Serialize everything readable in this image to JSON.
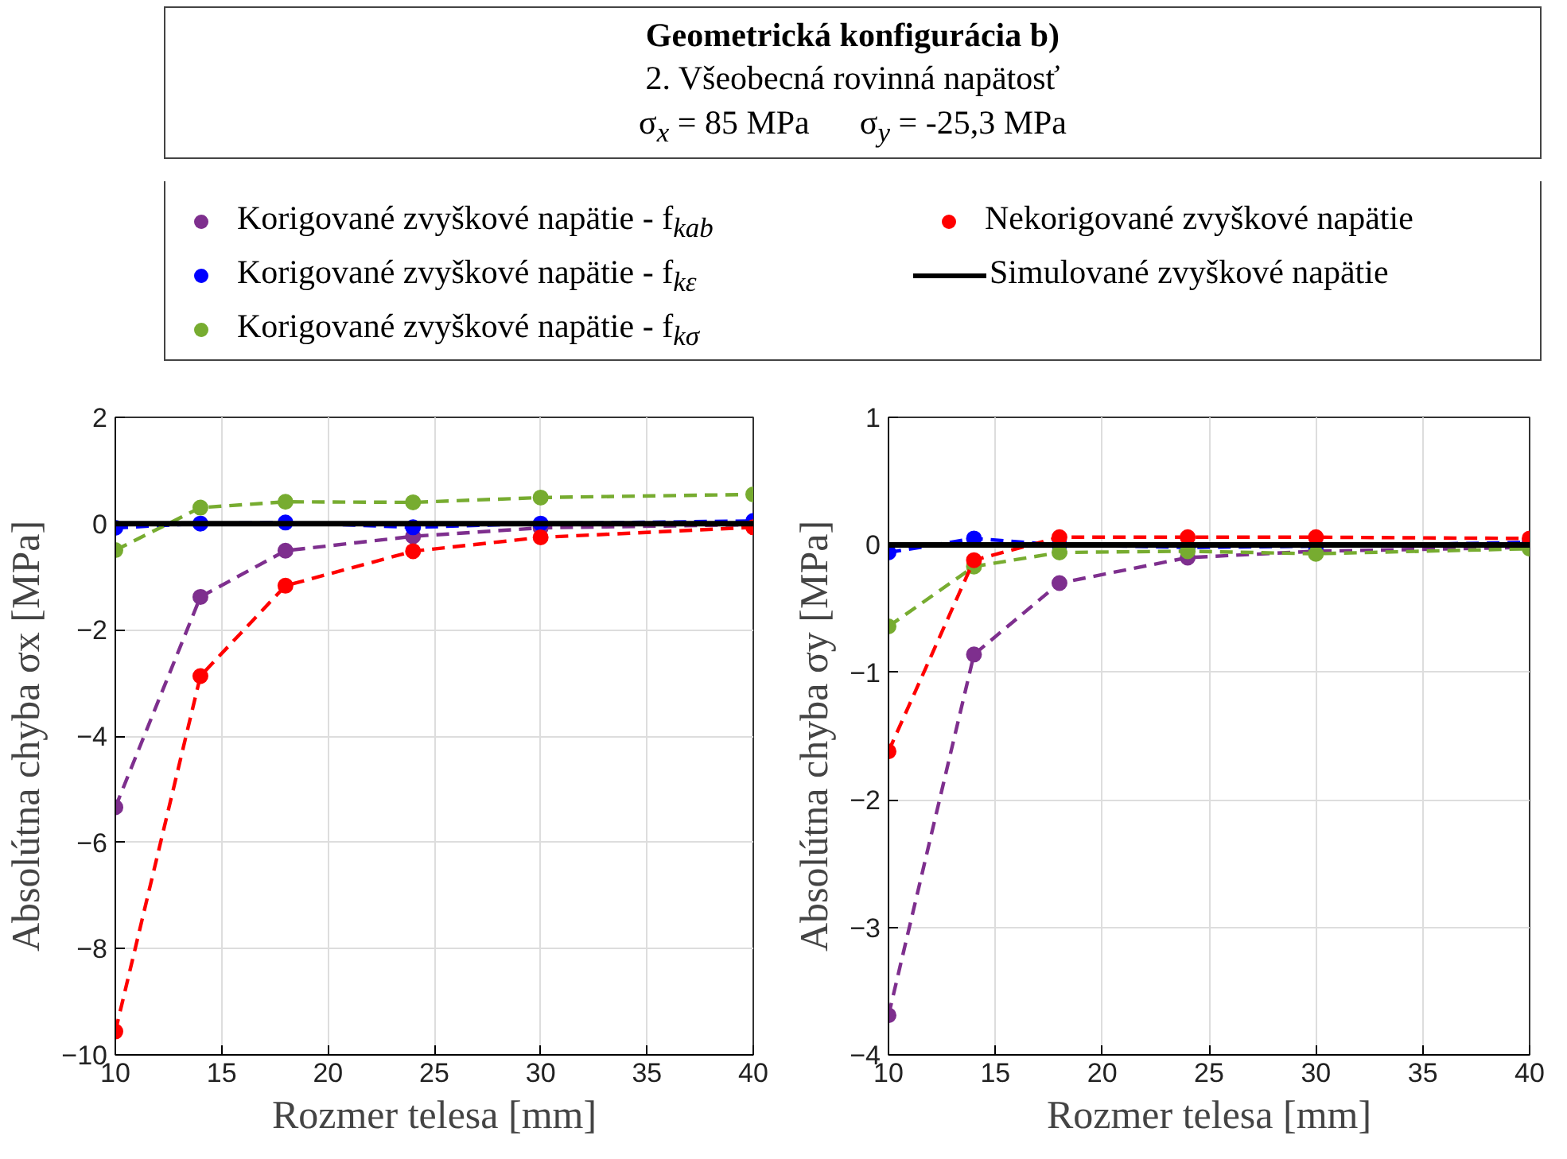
{
  "chart_data": [
    {
      "type": "line",
      "title": "Geometrická konfigurácia b)",
      "subtitle": "2. Všeobecná rovinná napätosť\nσ$_{x}$ = 85 MPa      σ$_{y}$ = -25,3 MPa",
      "xlabel": "Rozmer telesa [mm]",
      "ylabel": "Absolútna chyba σx [MPa]",
      "x": [
        10,
        14,
        18,
        24,
        30,
        40
      ],
      "xlim": [
        10,
        40
      ],
      "xticks": [
        10,
        15,
        20,
        25,
        30,
        35,
        40
      ],
      "ylim": [
        -10,
        2
      ],
      "yticks": [
        -10,
        -8,
        -6,
        -4,
        -2,
        0,
        2
      ],
      "grid": true,
      "legend": "top",
      "series": [
        {
          "name": "Korigované zvyškové napätie - f$_{kab}$",
          "color": "#7e2f8e",
          "marker": "circle",
          "line_style": "dashed",
          "values": [
            -5.34,
            -1.38,
            -0.51,
            -0.24,
            -0.08,
            -0.02
          ]
        },
        {
          "name": "Korigované zvyškové napätie - f$_{kε}$",
          "color": "#0000ff",
          "marker": "circle",
          "line_style": "dashed",
          "values": [
            -0.08,
            0.0,
            0.02,
            -0.07,
            0.0,
            0.05
          ]
        },
        {
          "name": "Korigované zvyškové napätie - f$_{kσ}$",
          "color": "#77ac30",
          "marker": "circle",
          "line_style": "dashed",
          "values": [
            -0.5,
            0.3,
            0.41,
            0.4,
            0.49,
            0.55
          ]
        },
        {
          "name": "Nekorigované zvyškové napätie",
          "color": "#ff0000",
          "marker": "circle",
          "line_style": "dashed",
          "values": [
            -9.56,
            -2.87,
            -1.17,
            -0.52,
            -0.26,
            -0.07
          ]
        },
        {
          "name": "Simulované zvyškové napätie",
          "color": "#000000",
          "marker": "none",
          "line_style": "solid",
          "values": [
            0,
            0,
            0,
            0,
            0,
            0
          ]
        }
      ]
    },
    {
      "type": "line",
      "xlabel": "Rozmer telesa [mm]",
      "ylabel": "Absolútna chyba σy [MPa]",
      "x": [
        10,
        14,
        18,
        24,
        30,
        40
      ],
      "xlim": [
        10,
        40
      ],
      "xticks": [
        10,
        15,
        20,
        25,
        30,
        35,
        40
      ],
      "ylim": [
        -4,
        1
      ],
      "yticks": [
        -4,
        -3,
        -2,
        -1,
        0,
        1
      ],
      "grid": true,
      "series": [
        {
          "color": "#7e2f8e",
          "marker": "circle",
          "line_style": "dashed",
          "values": [
            -3.69,
            -0.86,
            -0.3,
            -0.1,
            -0.05,
            -0.02
          ]
        },
        {
          "color": "#0000ff",
          "marker": "circle",
          "line_style": "dashed",
          "values": [
            -0.06,
            0.05,
            0.0,
            -0.02,
            -0.01,
            0.02
          ]
        },
        {
          "color": "#77ac30",
          "marker": "circle",
          "line_style": "dashed",
          "values": [
            -0.64,
            -0.17,
            -0.06,
            -0.05,
            -0.07,
            -0.03
          ]
        },
        {
          "color": "#ff0000",
          "marker": "circle",
          "line_style": "dashed",
          "values": [
            -1.62,
            -0.12,
            0.06,
            0.06,
            0.06,
            0.05
          ]
        },
        {
          "color": "#000000",
          "marker": "none",
          "line_style": "solid",
          "values": [
            0,
            0,
            0,
            0,
            0,
            0
          ]
        }
      ]
    }
  ]
}
